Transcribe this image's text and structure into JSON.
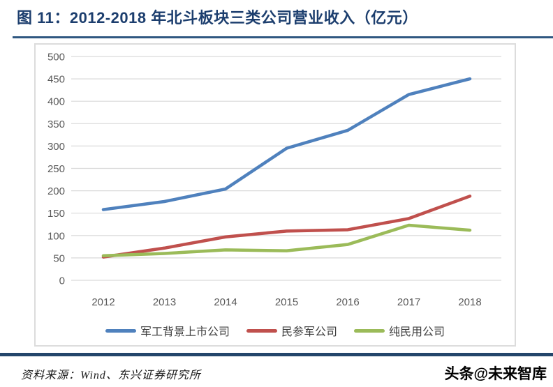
{
  "page": {
    "title": "图 11：2012-2018 年北斗板块三类公司营业收入（亿元）",
    "source_note": "资料来源：Wind、东兴证券研究所",
    "watermark": "头条@未来智库"
  },
  "colors": {
    "title_text": "#1C3E6E",
    "separator": "#2F5780",
    "footer_bar": "#24466B",
    "gridline": "#D9D9D9",
    "axis_text": "#595959",
    "chart_border": "#DCDCDC"
  },
  "chart_data": {
    "type": "line",
    "title": "2012-2018 年北斗板块三类公司营业收入（亿元）",
    "categories": [
      "2012",
      "2013",
      "2014",
      "2015",
      "2016",
      "2017",
      "2018"
    ],
    "series": [
      {
        "name": "军工背景上市公司",
        "color": "#4F81BD",
        "values": [
          158,
          176,
          204,
          295,
          335,
          415,
          450
        ]
      },
      {
        "name": "民参军公司",
        "color": "#C0504D",
        "values": [
          52,
          72,
          97,
          110,
          113,
          138,
          188
        ]
      },
      {
        "name": "纯民用公司",
        "color": "#9BBB59",
        "values": [
          55,
          60,
          68,
          66,
          80,
          123,
          112
        ]
      }
    ],
    "xlabel": "",
    "ylabel": "",
    "ylim": [
      0,
      500
    ],
    "ytick_step": 50,
    "grid": true,
    "legend_position": "bottom"
  }
}
